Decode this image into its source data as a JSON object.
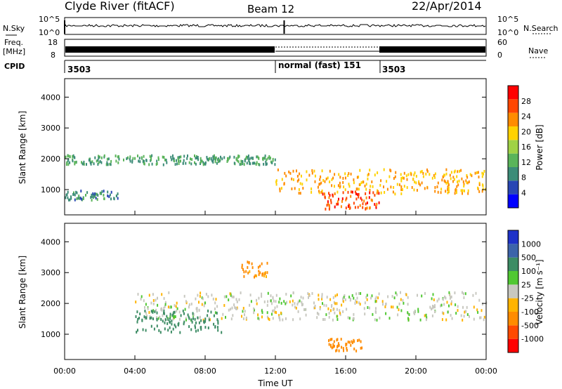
{
  "header": {
    "station": "Clyde River (fitACF)",
    "beam": "Beam 12",
    "date": "22/Apr/2014"
  },
  "strip": {
    "nsky_label": "N.Sky",
    "nsearch_label": "N.Search",
    "freq_label": "Freq.",
    "freq_unit": "[MHz]",
    "nave_label": "Nave",
    "cpid_label": "CPID",
    "left_noise_ticks": [
      "10^5",
      "10^0"
    ],
    "right_noise_ticks": [
      "10^5",
      "10^0"
    ],
    "left_freq_ticks": [
      "18",
      "8"
    ],
    "right_nave_ticks": [
      "60",
      "0"
    ],
    "cpid_segments": [
      {
        "label": "3503",
        "start": 0
      },
      {
        "label": "normal (fast) 151",
        "start": 12
      },
      {
        "label": "3503",
        "start": 18
      }
    ]
  },
  "colors": {
    "power": [
      "#0000ff",
      "#2846b4",
      "#3c8c78",
      "#5ab45a",
      "#a0d246",
      "#ffd200",
      "#ff8c00",
      "#ff4600",
      "#ff0000"
    ],
    "velocity": [
      "#ff0000",
      "#ff4a00",
      "#ff8c00",
      "#ffb400",
      "#c8c8c0",
      "#50c832",
      "#3c8c64",
      "#3c64aa",
      "#1e32c8"
    ]
  },
  "chart_data": [
    {
      "type": "heatmap",
      "name": "power",
      "xlabel": "",
      "ylabel": "Slant Range [km]",
      "xlim": [
        0,
        24
      ],
      "ylim": [
        180,
        4600
      ],
      "yticks": [
        1000,
        2000,
        3000,
        4000
      ],
      "colorbar": {
        "label": "Power [dB]",
        "range": [
          0,
          32
        ],
        "ticks": [
          "4",
          "8",
          "12",
          "16",
          "20",
          "24",
          "28"
        ]
      },
      "features": [
        {
          "time": [
            0,
            12
          ],
          "range": [
            1850,
            2150
          ],
          "value_db": 12
        },
        {
          "time": [
            12,
            24
          ],
          "range": [
            900,
            1700
          ],
          "value_db": 24
        },
        {
          "time": [
            14.5,
            18
          ],
          "range": [
            400,
            1000
          ],
          "value_db": 30
        },
        {
          "time": [
            0,
            3
          ],
          "range": [
            700,
            1000
          ],
          "value_db": 10
        }
      ]
    },
    {
      "type": "heatmap",
      "name": "velocity",
      "xlabel": "Time UT",
      "ylabel": "Slant Range [km]",
      "xlim": [
        0,
        24
      ],
      "xticks": [
        "00:00",
        "04:00",
        "08:00",
        "12:00",
        "16:00",
        "20:00",
        "00:00"
      ],
      "ylim": [
        180,
        4600
      ],
      "yticks": [
        1000,
        2000,
        3000,
        4000
      ],
      "colorbar": {
        "label": "Velocity [m s⁻¹]",
        "ticks": [
          "1000",
          "500",
          "100",
          "25",
          "-25",
          "-100",
          "-500",
          "-1000"
        ]
      },
      "features": [
        {
          "time": [
            4,
            24
          ],
          "range": [
            1500,
            2400
          ],
          "velocity": 0
        },
        {
          "time": [
            4,
            9
          ],
          "range": [
            1100,
            1800
          ],
          "velocity": 150
        },
        {
          "time": [
            10,
            11.5
          ],
          "range": [
            2900,
            3400
          ],
          "velocity": -120
        },
        {
          "time": [
            15,
            17
          ],
          "range": [
            500,
            900
          ],
          "velocity": -400
        }
      ]
    }
  ]
}
